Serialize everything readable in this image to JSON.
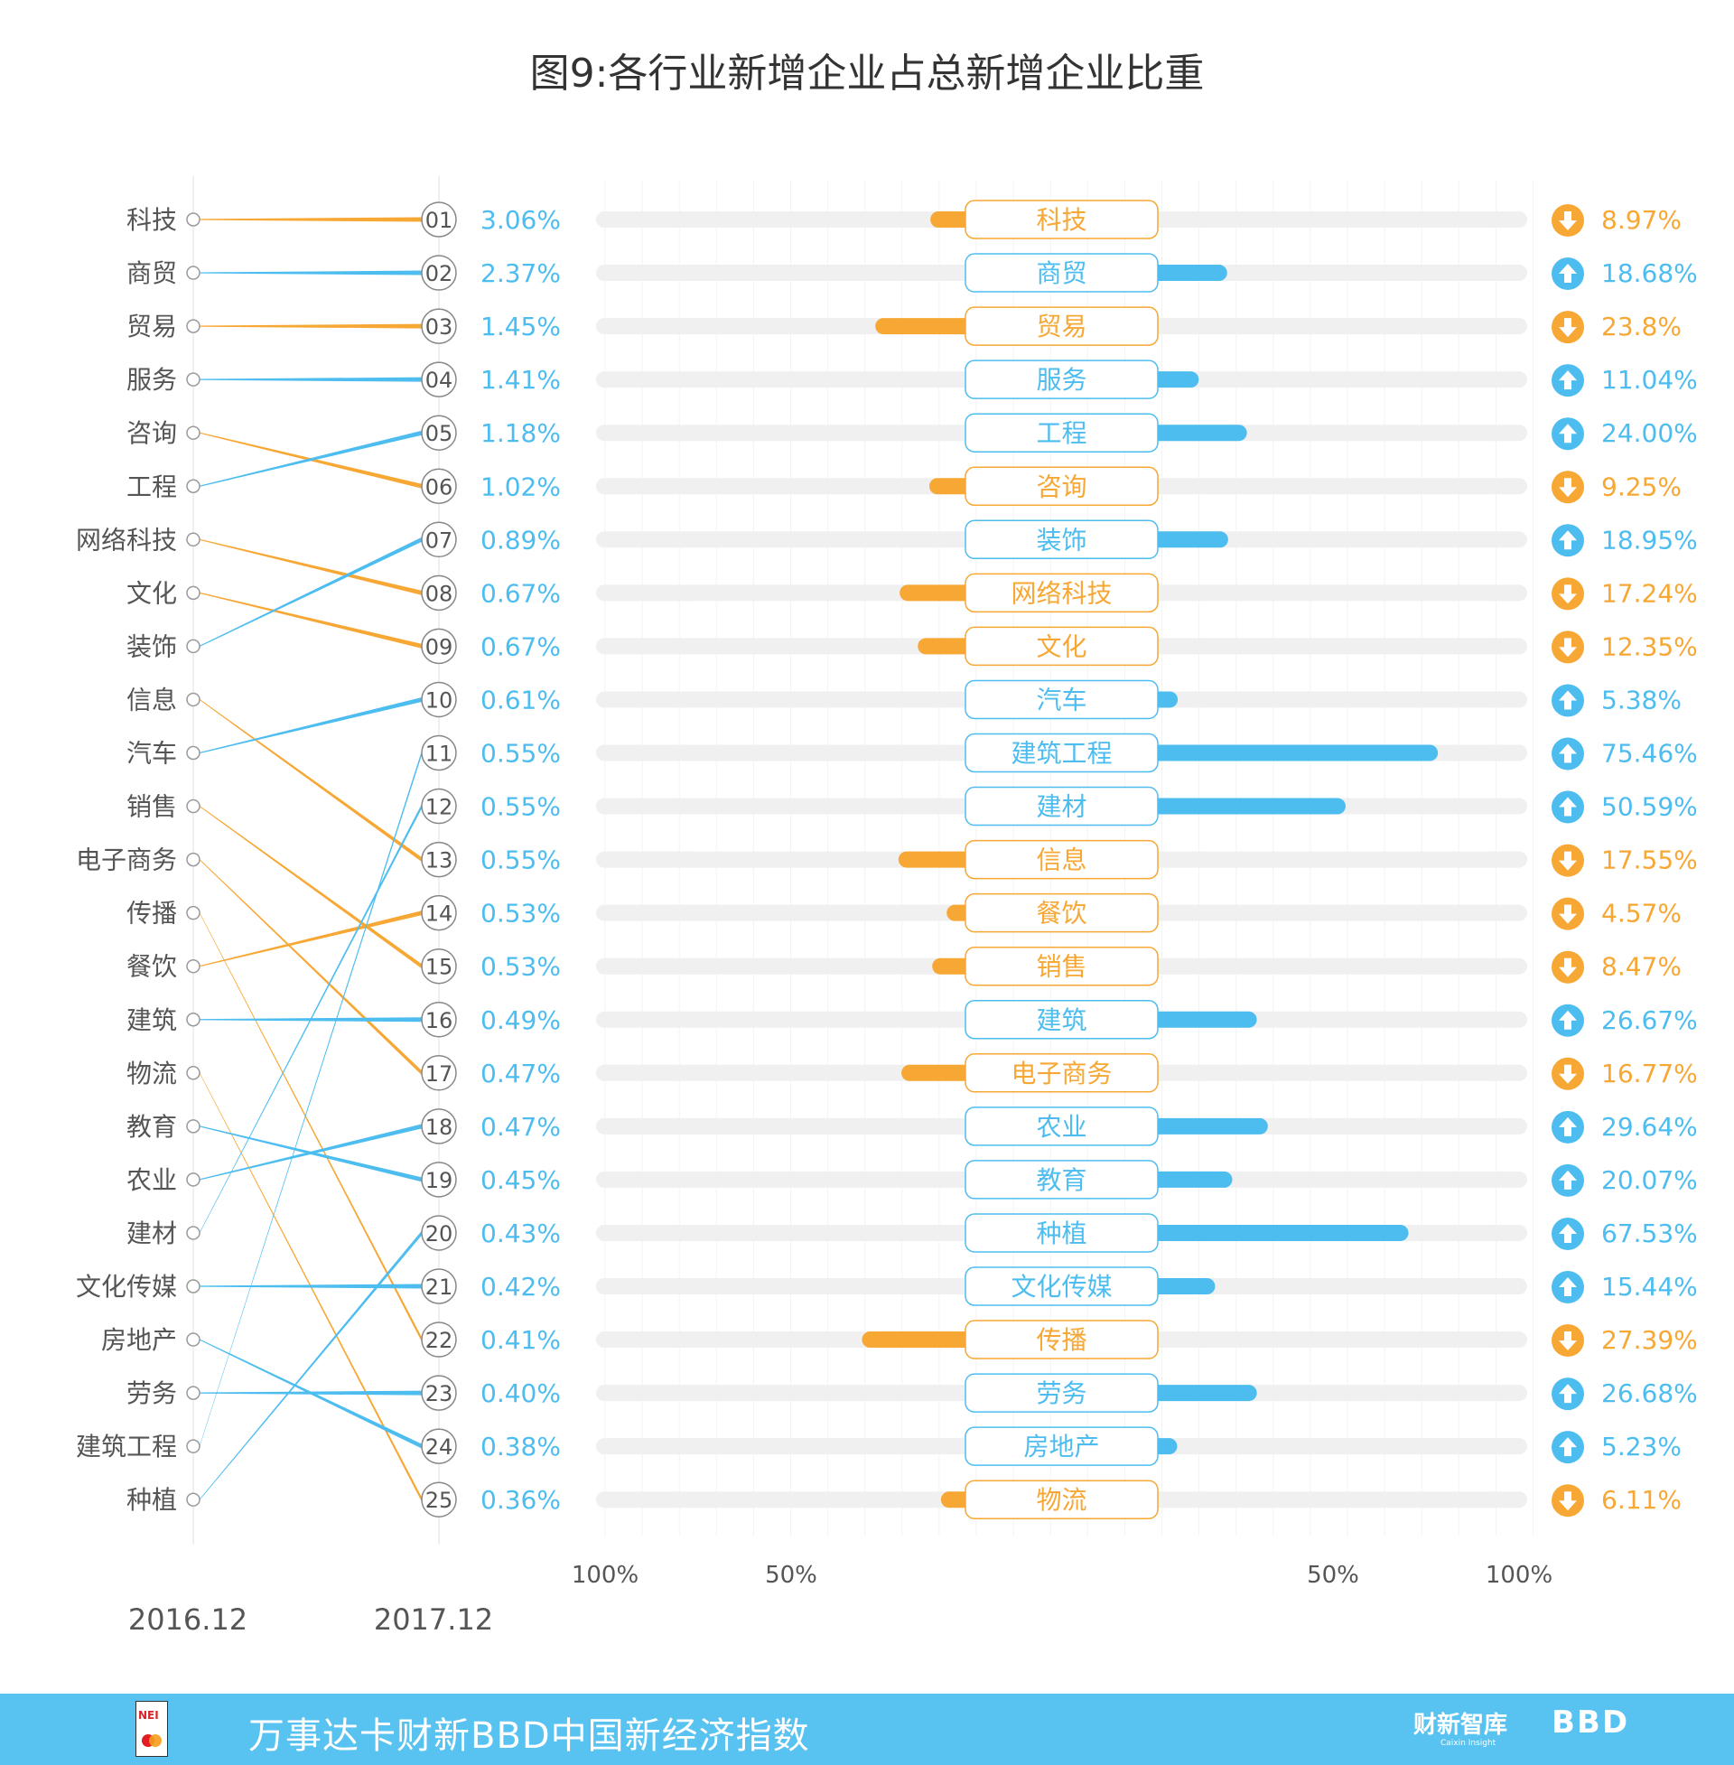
{
  "colors": {
    "up": "#4dbdf0",
    "down": "#f7a733",
    "track": "#f0f0f0",
    "footer": "#58c3f0"
  },
  "chart_data": {
    "type": "bar",
    "title": "图9:各行业新增企业占总新增企业比重",
    "left_column_label": "2016.12",
    "right_column_label": "2017.12",
    "axis_ticks_left": [
      "100%",
      "50%"
    ],
    "axis_ticks_right": [
      "50%",
      "100%"
    ],
    "xlim": [
      -100,
      100
    ],
    "grid": true,
    "rank_2016": [
      "科技",
      "商贸",
      "贸易",
      "服务",
      "咨询",
      "工程",
      "网络科技",
      "文化",
      "装饰",
      "信息",
      "汽车",
      "销售",
      "电子商务",
      "传播",
      "餐饮",
      "建筑",
      "物流",
      "教育",
      "农业",
      "建材",
      "文化传媒",
      "房地产",
      "劳务",
      "建筑工程",
      "种植"
    ],
    "rank_2017": [
      {
        "rank": "01",
        "industry": "科技",
        "share": "3.06%",
        "change": "8.97%",
        "value": -8.97,
        "direction": "down"
      },
      {
        "rank": "02",
        "industry": "商贸",
        "share": "2.37%",
        "change": "18.68%",
        "value": 18.68,
        "direction": "up"
      },
      {
        "rank": "03",
        "industry": "贸易",
        "share": "1.45%",
        "change": "23.8%",
        "value": -23.8,
        "direction": "down"
      },
      {
        "rank": "04",
        "industry": "服务",
        "share": "1.41%",
        "change": "11.04%",
        "value": 11.04,
        "direction": "up"
      },
      {
        "rank": "05",
        "industry": "工程",
        "share": "1.18%",
        "change": "24.00%",
        "value": 24.0,
        "direction": "up"
      },
      {
        "rank": "06",
        "industry": "咨询",
        "share": "1.02%",
        "change": "9.25%",
        "value": -9.25,
        "direction": "down"
      },
      {
        "rank": "07",
        "industry": "装饰",
        "share": "0.89%",
        "change": "18.95%",
        "value": 18.95,
        "direction": "up"
      },
      {
        "rank": "08",
        "industry": "网络科技",
        "share": "0.67%",
        "change": "17.24%",
        "value": -17.24,
        "direction": "down"
      },
      {
        "rank": "09",
        "industry": "文化",
        "share": "0.67%",
        "change": "12.35%",
        "value": -12.35,
        "direction": "down"
      },
      {
        "rank": "10",
        "industry": "汽车",
        "share": "0.61%",
        "change": "5.38%",
        "value": 5.38,
        "direction": "up"
      },
      {
        "rank": "11",
        "industry": "建筑工程",
        "share": "0.55%",
        "change": "75.46%",
        "value": 75.46,
        "direction": "up"
      },
      {
        "rank": "12",
        "industry": "建材",
        "share": "0.55%",
        "change": "50.59%",
        "value": 50.59,
        "direction": "up"
      },
      {
        "rank": "13",
        "industry": "信息",
        "share": "0.55%",
        "change": "17.55%",
        "value": -17.55,
        "direction": "down"
      },
      {
        "rank": "14",
        "industry": "餐饮",
        "share": "0.53%",
        "change": "4.57%",
        "value": -4.57,
        "direction": "down"
      },
      {
        "rank": "15",
        "industry": "销售",
        "share": "0.53%",
        "change": "8.47%",
        "value": -8.47,
        "direction": "down"
      },
      {
        "rank": "16",
        "industry": "建筑",
        "share": "0.49%",
        "change": "26.67%",
        "value": 26.67,
        "direction": "up"
      },
      {
        "rank": "17",
        "industry": "电子商务",
        "share": "0.47%",
        "change": "16.77%",
        "value": -16.77,
        "direction": "down"
      },
      {
        "rank": "18",
        "industry": "农业",
        "share": "0.47%",
        "change": "29.64%",
        "value": 29.64,
        "direction": "up"
      },
      {
        "rank": "19",
        "industry": "教育",
        "share": "0.45%",
        "change": "20.07%",
        "value": 20.07,
        "direction": "up"
      },
      {
        "rank": "20",
        "industry": "种植",
        "share": "0.43%",
        "change": "67.53%",
        "value": 67.53,
        "direction": "up"
      },
      {
        "rank": "21",
        "industry": "文化传媒",
        "share": "0.42%",
        "change": "15.44%",
        "value": 15.44,
        "direction": "up"
      },
      {
        "rank": "22",
        "industry": "传播",
        "share": "0.41%",
        "change": "27.39%",
        "value": -27.39,
        "direction": "down"
      },
      {
        "rank": "23",
        "industry": "劳务",
        "share": "0.40%",
        "change": "26.68%",
        "value": 26.68,
        "direction": "up"
      },
      {
        "rank": "24",
        "industry": "房地产",
        "share": "0.38%",
        "change": "5.23%",
        "value": 5.23,
        "direction": "up"
      },
      {
        "rank": "25",
        "industry": "物流",
        "share": "0.36%",
        "change": "6.11%",
        "value": -6.11,
        "direction": "down"
      }
    ]
  },
  "footer": {
    "title": "万事达卡财新BBD中国新经济指数",
    "logo_nei": "NEI",
    "logo_caixin": "财新智库",
    "logo_caixin_en": "Caixin Insight",
    "logo_bbd": "BBD"
  }
}
